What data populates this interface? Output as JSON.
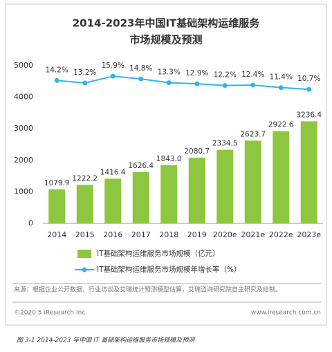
{
  "chart_data": {
    "type": "bar-line",
    "title": [
      "2014-2023年中国IT基础架构运维服务",
      "市场规模及预测"
    ],
    "categories": [
      "2014",
      "2015",
      "2016",
      "2017",
      "2018",
      "2019",
      "2020e",
      "2021e",
      "2022e",
      "2023e"
    ],
    "series": [
      {
        "name": "IT基础架构运维服务市场规模（亿元）",
        "type": "bar",
        "color": "#8dc63f",
        "values": [
          1079.9,
          1222.2,
          1416.4,
          1626.4,
          1843.0,
          2080.7,
          2334.5,
          2623.7,
          2922.6,
          3236.4
        ],
        "value_labels": [
          "1079.9",
          "1222.2",
          "1416.4",
          "1626.4",
          "1843.0",
          "2080.7",
          "2334.5",
          "2623.7",
          "2922.6",
          "3236.4"
        ]
      },
      {
        "name": "IT基础架构运维服务市场规模年增长率（%）",
        "type": "line",
        "color": "#2db7ea",
        "axis": "y2",
        "values": [
          14.2,
          13.2,
          15.9,
          14.8,
          13.3,
          12.9,
          12.2,
          12.4,
          11.4,
          10.7
        ],
        "value_labels": [
          "14.2%",
          "13.2%",
          "15.9%",
          "14.8%",
          "13.3%",
          "12.9%",
          "12.2%",
          "12.4%",
          "11.4%",
          "10.7%"
        ]
      }
    ],
    "ylim": [
      0,
      5000
    ],
    "yticks": [
      0,
      1000,
      2000,
      3000,
      4000,
      5000
    ],
    "y2lim": [
      -42,
      20
    ],
    "grid": false,
    "legend": "bottom"
  },
  "source": "来源：根据企业公开数据、行业访谈及艾瑞统计预测模型估算，艾瑞咨询研究院自主研究及绘制。",
  "copyright": "©2020.5 iResearch Inc.",
  "website": "www.iresearch.com.cn",
  "caption": "图 3-1 2014-2023 年中国 IT 基础架构运维服务市场规模及预测"
}
